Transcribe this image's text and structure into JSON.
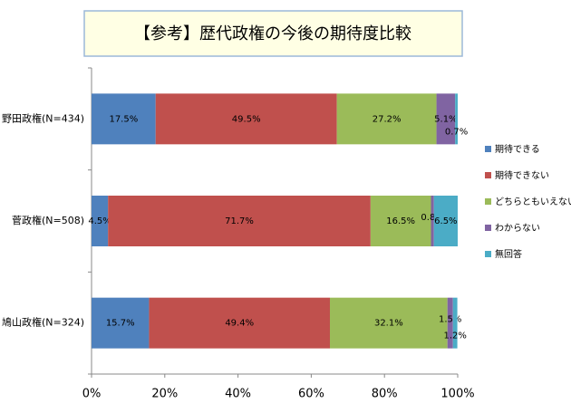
{
  "chart_data": {
    "type": "stacked-barh",
    "title": "【参考】歴代政権の今後の期待度比較",
    "categories": [
      "野田政権(N=434)",
      "菅政権(N=508)",
      "鳩山政権(N=324)"
    ],
    "series": [
      {
        "name": "期待できる",
        "color": "#4f81bd",
        "values": [
          17.5,
          4.5,
          15.7
        ],
        "value_labels": [
          "17.5%",
          "4.5%",
          "15.7%"
        ]
      },
      {
        "name": "期待できない",
        "color": "#c0504d",
        "values": [
          49.5,
          71.7,
          49.4
        ],
        "value_labels": [
          "49.5%",
          "71.7%",
          "49.4%"
        ]
      },
      {
        "name": "どちらともいえない",
        "color": "#9bbb59",
        "values": [
          27.2,
          16.5,
          32.1
        ],
        "value_labels": [
          "27.2%",
          "16.5%",
          "32.1%"
        ]
      },
      {
        "name": "わからない",
        "color": "#8064a2",
        "values": [
          5.1,
          0.8,
          1.5
        ],
        "value_labels": [
          "5.1%",
          "0.8%",
          "1.5%"
        ]
      },
      {
        "name": "無回答",
        "color": "#4bacc6",
        "values": [
          0.7,
          6.5,
          1.2
        ],
        "value_labels": [
          "0.7%",
          "6.5%",
          "1.2%"
        ]
      }
    ],
    "xlim": [
      0,
      100
    ],
    "xticks": [
      {
        "value": 0,
        "label": "0%"
      },
      {
        "value": 20,
        "label": "20%"
      },
      {
        "value": 40,
        "label": "40%"
      },
      {
        "value": 60,
        "label": "60%"
      },
      {
        "value": 80,
        "label": "80%"
      },
      {
        "value": 100,
        "label": "100%"
      }
    ],
    "legend": "right"
  }
}
